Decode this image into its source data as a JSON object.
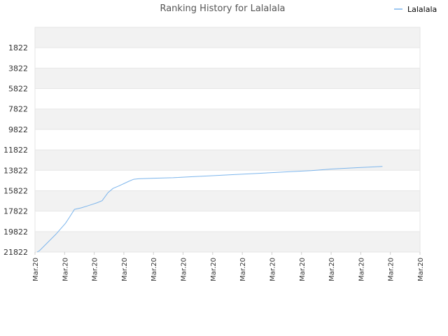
{
  "chart_data": {
    "type": "line",
    "title": "Ranking History for Lalalala",
    "xlabel": "",
    "ylabel": "",
    "y_reversed": true,
    "ylim": [
      -178,
      21822
    ],
    "yticks": [
      1822,
      3822,
      5822,
      7822,
      9822,
      11822,
      13822,
      15822,
      17822,
      19822,
      21822
    ],
    "xticks": [
      "Mar.20",
      "Mar.20",
      "Mar.20",
      "Mar.20",
      "Mar.20",
      "Mar.20",
      "Mar.20",
      "Mar.20",
      "Mar.20",
      "Mar.20",
      "Mar.20",
      "Mar.20",
      "Mar.20",
      "Mar.20"
    ],
    "grid": "banded",
    "legend_position": "top-right",
    "colors": {
      "line": "#7cb5ec",
      "band": "#f2f2f2",
      "grid": "#e6e6e6"
    },
    "series": [
      {
        "name": "Lalalala",
        "points": [
          [
            0.22,
            21822
          ],
          [
            0.45,
            21700
          ],
          [
            2.1,
            20100
          ],
          [
            3.1,
            19000
          ],
          [
            3.5,
            18400
          ],
          [
            4.0,
            17650
          ],
          [
            4.7,
            17500
          ],
          [
            5.5,
            17250
          ],
          [
            6.3,
            17000
          ],
          [
            6.8,
            16800
          ],
          [
            7.4,
            16000
          ],
          [
            7.9,
            15600
          ],
          [
            8.5,
            15350
          ],
          [
            9.5,
            14900
          ],
          [
            10.0,
            14700
          ],
          [
            10.5,
            14650
          ],
          [
            12.0,
            14600
          ],
          [
            14.0,
            14550
          ],
          [
            16.0,
            14450
          ],
          [
            18.0,
            14350
          ],
          [
            20.0,
            14250
          ],
          [
            22.0,
            14150
          ],
          [
            24.0,
            14050
          ],
          [
            26.0,
            13950
          ],
          [
            28.0,
            13850
          ],
          [
            30.0,
            13700
          ],
          [
            32.0,
            13600
          ],
          [
            34.0,
            13500
          ],
          [
            35.2,
            13450
          ]
        ],
        "x_scale_max": 39.0
      }
    ]
  }
}
